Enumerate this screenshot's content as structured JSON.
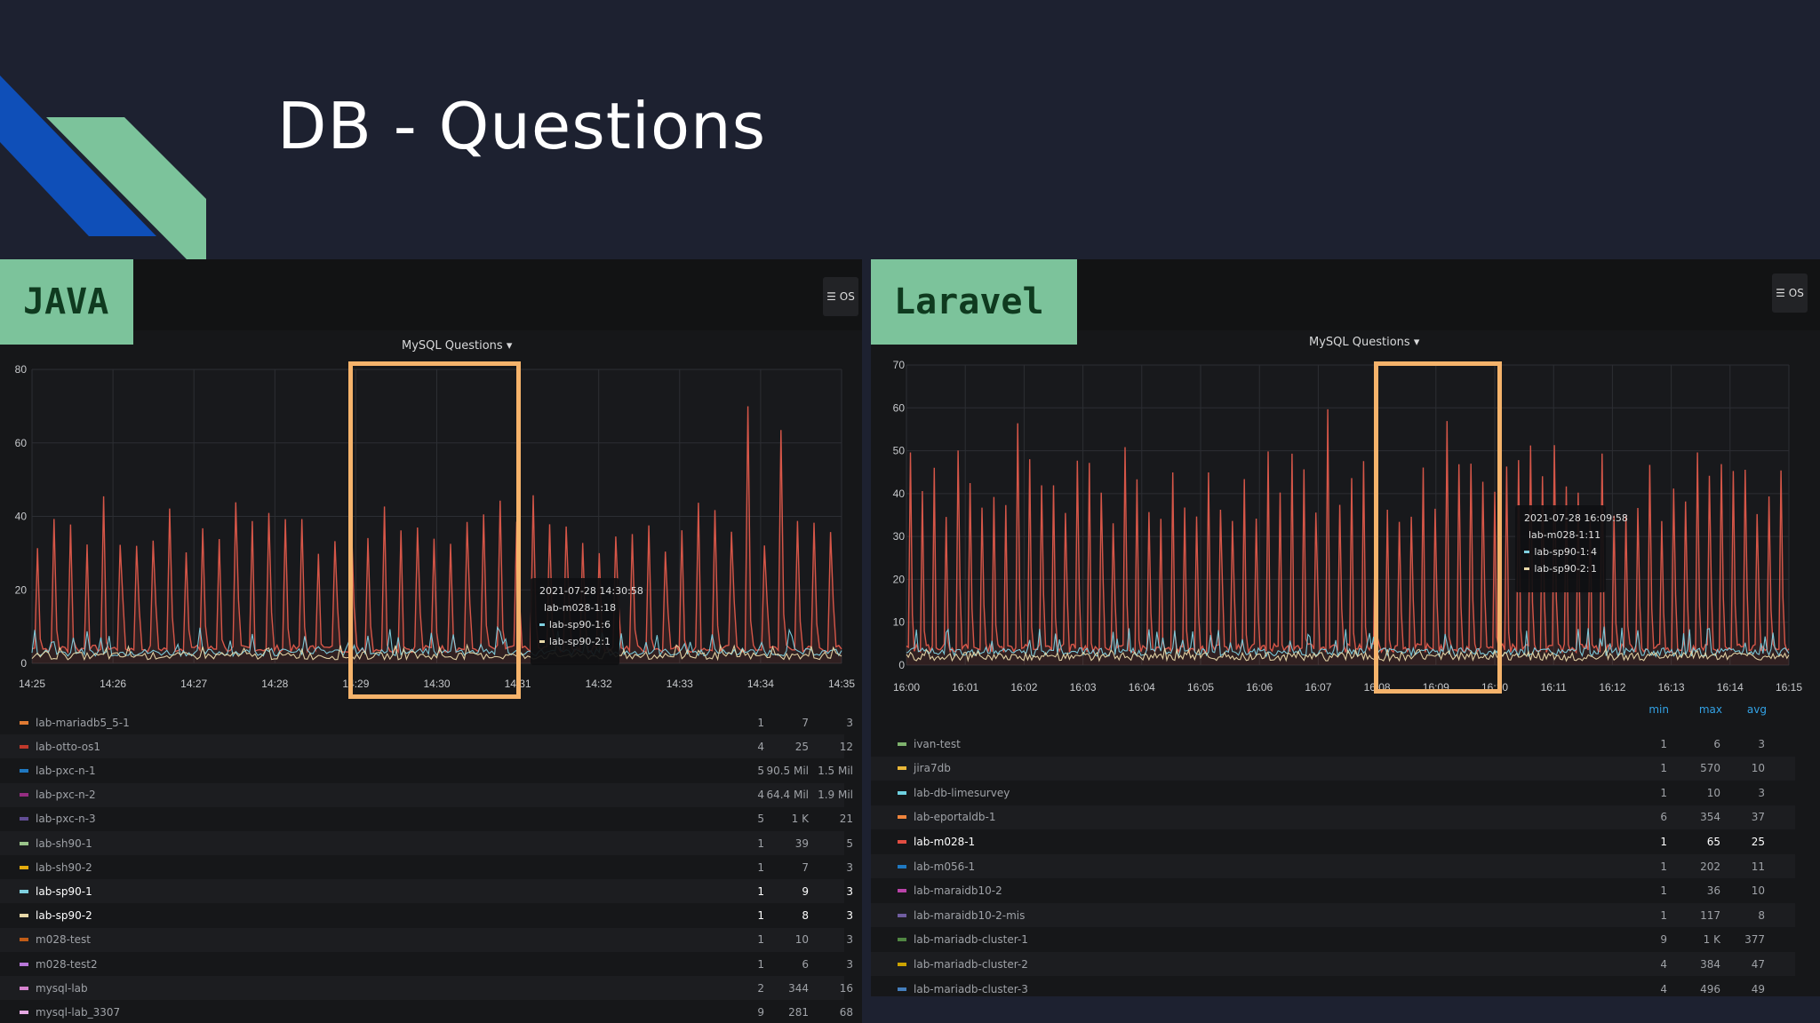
{
  "slide": {
    "title": "DB - Questions"
  },
  "colors": {
    "background": "#1d2130",
    "deco_blue": "#0f4fb8",
    "deco_green": "#7cc39b",
    "highlight": "#f5b36b",
    "series_red": "#e05a4b",
    "series_blue": "#7fd0e0",
    "series_yellow": "#e8d8a8"
  },
  "panels": [
    {
      "badge": "JAVA",
      "menu_button": "☰ OS",
      "chart_title": "MySQL Questions ▾",
      "tooltip": {
        "time": "2021-07-28 14:30:58",
        "rows": [
          {
            "name": "lab-m028-1:",
            "value": "18",
            "color": "#e05a4b"
          },
          {
            "name": "lab-sp90-1:",
            "value": "6",
            "color": "#7fd0e0"
          },
          {
            "name": "lab-sp90-2:",
            "value": "1",
            "color": "#e8d8a8"
          }
        ]
      },
      "chart_data": {
        "type": "line",
        "x_ticks": [
          "14:25",
          "14:26",
          "14:27",
          "14:28",
          "14:29",
          "14:30",
          "14:31",
          "14:32",
          "14:33",
          "14:34",
          "14:35"
        ],
        "y_ticks": [
          "0",
          "20",
          "40",
          "60",
          "80"
        ],
        "ylim": [
          0,
          80
        ],
        "series": [
          {
            "name": "lab-m028-1",
            "color": "#e05a4b",
            "peak_typical": 42,
            "peak_max": 73,
            "baseline": 3
          },
          {
            "name": "lab-sp90-1",
            "color": "#7fd0e0",
            "peak_typical": 8,
            "baseline": 2
          },
          {
            "name": "lab-sp90-2",
            "color": "#e8d8a8",
            "peak_typical": 4,
            "baseline": 1
          }
        ]
      },
      "legend": [
        {
          "name": "lab-mariadb5_5-1",
          "min": "1",
          "max": "7",
          "avg": "3",
          "color": "#e07a33",
          "bold": false
        },
        {
          "name": "lab-otto-os1",
          "min": "4",
          "max": "25",
          "avg": "12",
          "color": "#c0392b",
          "bold": false
        },
        {
          "name": "lab-pxc-n-1",
          "min": "5",
          "max": "90.5 Mil",
          "avg": "1.5 Mil",
          "color": "#1f78c1",
          "bold": false
        },
        {
          "name": "lab-pxc-n-2",
          "min": "4",
          "max": "64.4 Mil",
          "avg": "1.9 Mil",
          "color": "#962d82",
          "bold": false
        },
        {
          "name": "lab-pxc-n-3",
          "min": "5",
          "max": "1 K",
          "avg": "21",
          "color": "#614d93",
          "bold": false
        },
        {
          "name": "lab-sh90-1",
          "min": "1",
          "max": "39",
          "avg": "5",
          "color": "#9ac48a",
          "bold": false
        },
        {
          "name": "lab-sh90-2",
          "min": "1",
          "max": "7",
          "avg": "3",
          "color": "#e5ac0e",
          "bold": false
        },
        {
          "name": "lab-sp90-1",
          "min": "1",
          "max": "9",
          "avg": "3",
          "color": "#7fd0e0",
          "bold": true
        },
        {
          "name": "lab-sp90-2",
          "min": "1",
          "max": "8",
          "avg": "3",
          "color": "#e8d8a8",
          "bold": true
        },
        {
          "name": "m028-test",
          "min": "1",
          "max": "10",
          "avg": "3",
          "color": "#c15c17",
          "bold": false
        },
        {
          "name": "m028-test2",
          "min": "1",
          "max": "6",
          "avg": "3",
          "color": "#b877d9",
          "bold": false
        },
        {
          "name": "mysql-lab",
          "min": "2",
          "max": "344",
          "avg": "16",
          "color": "#d683ce",
          "bold": false
        },
        {
          "name": "mysql-lab_3307",
          "min": "9",
          "max": "281",
          "avg": "68",
          "color": "#e5a8e2",
          "bold": false
        }
      ]
    },
    {
      "badge": "Laravel",
      "menu_button": "☰ OS",
      "chart_title": "MySQL Questions ▾",
      "tooltip": {
        "time": "2021-07-28 16:09:58",
        "rows": [
          {
            "name": "lab-m028-1:",
            "value": "11",
            "color": "#e05a4b"
          },
          {
            "name": "lab-sp90-1:",
            "value": "4",
            "color": "#7fd0e0"
          },
          {
            "name": "lab-sp90-2:",
            "value": "1",
            "color": "#e8d8a8"
          }
        ]
      },
      "chart_data": {
        "type": "line",
        "x_ticks": [
          "16:00",
          "16:01",
          "16:02",
          "16:03",
          "16:04",
          "16:05",
          "16:06",
          "16:07",
          "16:08",
          "16:09",
          "16:10",
          "16:11",
          "16:12",
          "16:13",
          "16:14",
          "16:15"
        ],
        "y_ticks": [
          "0",
          "10",
          "20",
          "30",
          "40",
          "50",
          "60",
          "70"
        ],
        "ylim": [
          0,
          70
        ],
        "series": [
          {
            "name": "lab-m028-1",
            "color": "#e05a4b",
            "peak_typical": 47,
            "peak_max": 65,
            "baseline": 3
          },
          {
            "name": "lab-sp90-1",
            "color": "#7fd0e0",
            "peak_typical": 7,
            "baseline": 2
          },
          {
            "name": "lab-sp90-2",
            "color": "#e8d8a8",
            "peak_typical": 3,
            "baseline": 1
          }
        ]
      },
      "legend_headers": {
        "min": "min",
        "max": "max",
        "avg": "avg"
      },
      "legend": [
        {
          "name": "ivan-test",
          "min": "1",
          "max": "6",
          "avg": "3",
          "color": "#7eb26d",
          "bold": false
        },
        {
          "name": "jira7db",
          "min": "1",
          "max": "570",
          "avg": "10",
          "color": "#eab839",
          "bold": false
        },
        {
          "name": "lab-db-limesurvey",
          "min": "1",
          "max": "10",
          "avg": "3",
          "color": "#6ed0e0",
          "bold": false
        },
        {
          "name": "lab-eportaldb-1",
          "min": "6",
          "max": "354",
          "avg": "37",
          "color": "#ef843c",
          "bold": false
        },
        {
          "name": "lab-m028-1",
          "min": "1",
          "max": "65",
          "avg": "25",
          "color": "#e24d42",
          "bold": true
        },
        {
          "name": "lab-m056-1",
          "min": "1",
          "max": "202",
          "avg": "11",
          "color": "#1f78c1",
          "bold": false
        },
        {
          "name": "lab-maraidb10-2",
          "min": "1",
          "max": "36",
          "avg": "10",
          "color": "#ba43a9",
          "bold": false
        },
        {
          "name": "lab-maraidb10-2-mis",
          "min": "1",
          "max": "117",
          "avg": "8",
          "color": "#705da0",
          "bold": false
        },
        {
          "name": "lab-mariadb-cluster-1",
          "min": "9",
          "max": "1 K",
          "avg": "377",
          "color": "#508642",
          "bold": false
        },
        {
          "name": "lab-mariadb-cluster-2",
          "min": "4",
          "max": "384",
          "avg": "47",
          "color": "#cca300",
          "bold": false
        },
        {
          "name": "lab-mariadb-cluster-3",
          "min": "4",
          "max": "496",
          "avg": "49",
          "color": "#447ebc",
          "bold": false
        }
      ]
    }
  ]
}
